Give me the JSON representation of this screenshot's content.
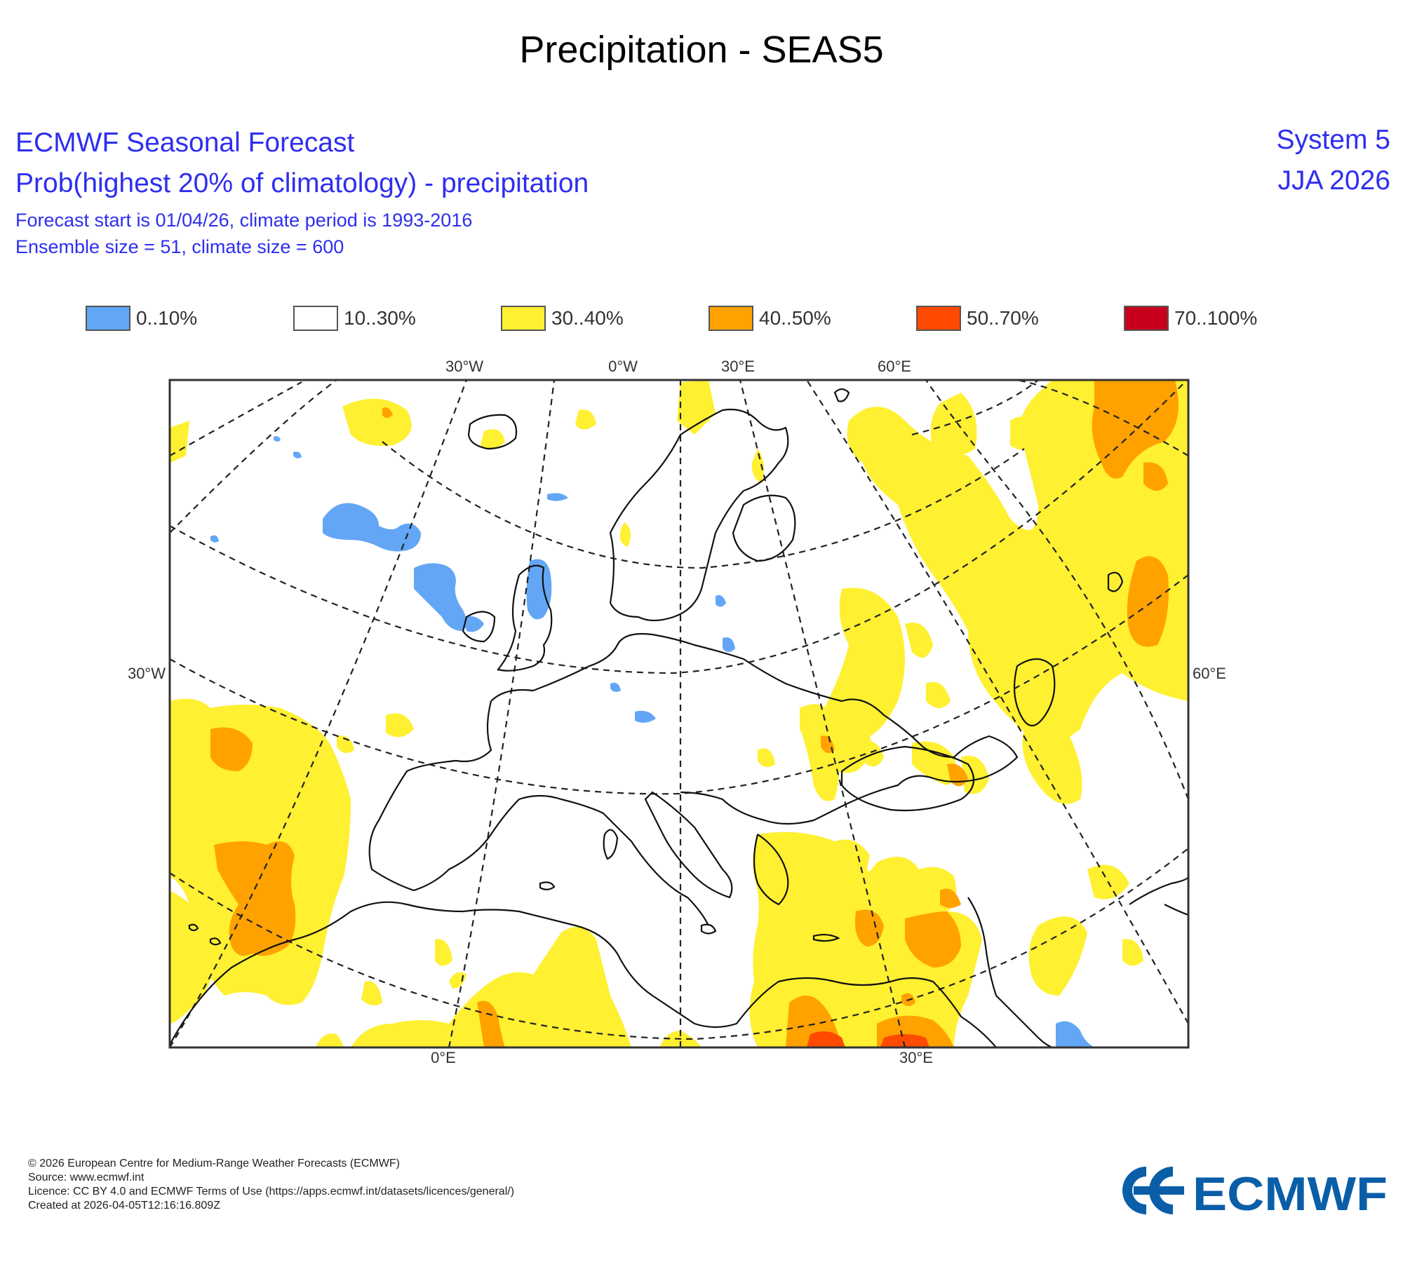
{
  "title": "Precipitation - SEAS5",
  "header": {
    "line1": "ECMWF Seasonal Forecast",
    "line2": "Prob(highest 20% of climatology) - precipitation",
    "line3": "Forecast start is 01/04/26, climate period is 1993-2016",
    "line4": "Ensemble size = 51, climate size = 600",
    "system": "System 5",
    "season": "JJA 2026"
  },
  "legend": [
    {
      "label": "0..10%",
      "color": "#63a6f5"
    },
    {
      "label": "10..30%",
      "color": "#ffffff"
    },
    {
      "label": "30..40%",
      "color": "#fff031"
    },
    {
      "label": "40..50%",
      "color": "#ffa200"
    },
    {
      "label": "50..70%",
      "color": "#ff4a00"
    },
    {
      "label": "70..100%",
      "color": "#c8001e"
    }
  ],
  "map": {
    "lon_labels_top": [
      "30°W",
      "0°W",
      "30°E",
      "60°E"
    ],
    "lon_labels_bottom": [
      "0°E",
      "30°E"
    ],
    "lat_label_left": "30°W",
    "lat_label_right": "60°E"
  },
  "footer": {
    "copyright": "© 2026 European Centre for Medium-Range Weather Forecasts (ECMWF)",
    "source": "Source: www.ecmwf.int",
    "licence": "Licence: CC BY 4.0 and ECMWF Terms of Use (https://apps.ecmwf.int/datasets/licences/general/)",
    "created": "Created at 2026-04-05T12:16:16.809Z"
  },
  "logo_text": "ECMWF"
}
